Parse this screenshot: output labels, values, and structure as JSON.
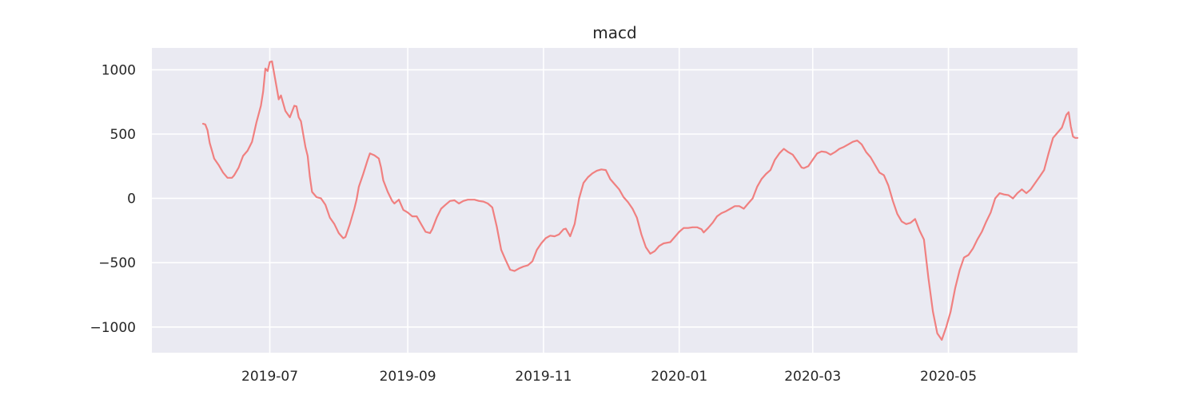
{
  "chart_data": {
    "type": "line",
    "title": "macd",
    "xlabel": "",
    "ylabel": "",
    "grid": true,
    "legend": "none",
    "x_axis": {
      "type": "date",
      "range": [
        "2019-05-09",
        "2020-06-28"
      ],
      "ticks": [
        "2019-07-01",
        "2019-09-01",
        "2019-11-01",
        "2020-01-01",
        "2020-03-01",
        "2020-05-01"
      ],
      "tick_labels": [
        "2019-07",
        "2019-09",
        "2019-11",
        "2020-01",
        "2020-03",
        "2020-05"
      ]
    },
    "y_axis": {
      "range": [
        -1200,
        1170
      ],
      "ticks": [
        -1000,
        -500,
        0,
        500,
        1000
      ],
      "tick_labels": [
        "−1000",
        "−500",
        "0",
        "500",
        "1000"
      ]
    },
    "colors": {
      "series": "#f08080",
      "plot_background": "#eaeaf2",
      "grid": "#ffffff",
      "text": "#262626"
    },
    "series": [
      {
        "points": [
          [
            "2019-06-01",
            580
          ],
          [
            "2019-06-02",
            575
          ],
          [
            "2019-06-03",
            530
          ],
          [
            "2019-06-04",
            430
          ],
          [
            "2019-06-05",
            370
          ],
          [
            "2019-06-06",
            310
          ],
          [
            "2019-06-08",
            260
          ],
          [
            "2019-06-10",
            200
          ],
          [
            "2019-06-12",
            160
          ],
          [
            "2019-06-14",
            160
          ],
          [
            "2019-06-15",
            180
          ],
          [
            "2019-06-17",
            240
          ],
          [
            "2019-06-19",
            330
          ],
          [
            "2019-06-21",
            370
          ],
          [
            "2019-06-23",
            440
          ],
          [
            "2019-06-25",
            590
          ],
          [
            "2019-06-27",
            720
          ],
          [
            "2019-06-28",
            830
          ],
          [
            "2019-06-29",
            1010
          ],
          [
            "2019-06-30",
            990
          ],
          [
            "2019-07-01",
            1060
          ],
          [
            "2019-07-02",
            1065
          ],
          [
            "2019-07-04",
            870
          ],
          [
            "2019-07-05",
            770
          ],
          [
            "2019-07-06",
            800
          ],
          [
            "2019-07-08",
            680
          ],
          [
            "2019-07-10",
            630
          ],
          [
            "2019-07-12",
            720
          ],
          [
            "2019-07-13",
            715
          ],
          [
            "2019-07-14",
            630
          ],
          [
            "2019-07-15",
            600
          ],
          [
            "2019-07-17",
            400
          ],
          [
            "2019-07-18",
            330
          ],
          [
            "2019-07-19",
            170
          ],
          [
            "2019-07-20",
            50
          ],
          [
            "2019-07-22",
            10
          ],
          [
            "2019-07-24",
            0
          ],
          [
            "2019-07-26",
            -50
          ],
          [
            "2019-07-28",
            -150
          ],
          [
            "2019-07-30",
            -200
          ],
          [
            "2019-08-01",
            -270
          ],
          [
            "2019-08-03",
            -310
          ],
          [
            "2019-08-04",
            -300
          ],
          [
            "2019-08-06",
            -200
          ],
          [
            "2019-08-08",
            -80
          ],
          [
            "2019-08-09",
            -10
          ],
          [
            "2019-08-10",
            90
          ],
          [
            "2019-08-12",
            190
          ],
          [
            "2019-08-14",
            300
          ],
          [
            "2019-08-15",
            350
          ],
          [
            "2019-08-17",
            335
          ],
          [
            "2019-08-19",
            310
          ],
          [
            "2019-08-20",
            240
          ],
          [
            "2019-08-21",
            140
          ],
          [
            "2019-08-23",
            50
          ],
          [
            "2019-08-25",
            -20
          ],
          [
            "2019-08-26",
            -40
          ],
          [
            "2019-08-28",
            -10
          ],
          [
            "2019-08-30",
            -90
          ],
          [
            "2019-09-01",
            -110
          ],
          [
            "2019-09-03",
            -140
          ],
          [
            "2019-09-05",
            -140
          ],
          [
            "2019-09-07",
            -200
          ],
          [
            "2019-09-09",
            -260
          ],
          [
            "2019-09-11",
            -270
          ],
          [
            "2019-09-12",
            -240
          ],
          [
            "2019-09-14",
            -150
          ],
          [
            "2019-09-16",
            -80
          ],
          [
            "2019-09-18",
            -50
          ],
          [
            "2019-09-20",
            -20
          ],
          [
            "2019-09-22",
            -15
          ],
          [
            "2019-09-24",
            -40
          ],
          [
            "2019-09-26",
            -20
          ],
          [
            "2019-09-28",
            -10
          ],
          [
            "2019-10-01",
            -10
          ],
          [
            "2019-10-03",
            -20
          ],
          [
            "2019-10-05",
            -25
          ],
          [
            "2019-10-07",
            -40
          ],
          [
            "2019-10-09",
            -70
          ],
          [
            "2019-10-11",
            -220
          ],
          [
            "2019-10-13",
            -400
          ],
          [
            "2019-10-15",
            -480
          ],
          [
            "2019-10-17",
            -555
          ],
          [
            "2019-10-19",
            -565
          ],
          [
            "2019-10-21",
            -545
          ],
          [
            "2019-10-23",
            -530
          ],
          [
            "2019-10-25",
            -520
          ],
          [
            "2019-10-27",
            -490
          ],
          [
            "2019-10-29",
            -400
          ],
          [
            "2019-10-31",
            -350
          ],
          [
            "2019-11-02",
            -310
          ],
          [
            "2019-11-04",
            -290
          ],
          [
            "2019-11-06",
            -295
          ],
          [
            "2019-11-08",
            -280
          ],
          [
            "2019-11-10",
            -240
          ],
          [
            "2019-11-11",
            -235
          ],
          [
            "2019-11-13",
            -295
          ],
          [
            "2019-11-15",
            -200
          ],
          [
            "2019-11-17",
            0
          ],
          [
            "2019-11-19",
            120
          ],
          [
            "2019-11-21",
            165
          ],
          [
            "2019-11-23",
            195
          ],
          [
            "2019-11-25",
            215
          ],
          [
            "2019-11-27",
            225
          ],
          [
            "2019-11-29",
            220
          ],
          [
            "2019-12-01",
            150
          ],
          [
            "2019-12-03",
            110
          ],
          [
            "2019-12-05",
            70
          ],
          [
            "2019-12-07",
            10
          ],
          [
            "2019-12-09",
            -30
          ],
          [
            "2019-12-11",
            -80
          ],
          [
            "2019-12-13",
            -150
          ],
          [
            "2019-12-15",
            -280
          ],
          [
            "2019-12-17",
            -380
          ],
          [
            "2019-12-19",
            -430
          ],
          [
            "2019-12-21",
            -410
          ],
          [
            "2019-12-23",
            -370
          ],
          [
            "2019-12-25",
            -350
          ],
          [
            "2019-12-28",
            -340
          ],
          [
            "2019-12-30",
            -300
          ],
          [
            "2020-01-01",
            -260
          ],
          [
            "2020-01-03",
            -230
          ],
          [
            "2020-01-05",
            -230
          ],
          [
            "2020-01-07",
            -225
          ],
          [
            "2020-01-09",
            -225
          ],
          [
            "2020-01-11",
            -240
          ],
          [
            "2020-01-12",
            -265
          ],
          [
            "2020-01-14",
            -230
          ],
          [
            "2020-01-16",
            -190
          ],
          [
            "2020-01-18",
            -140
          ],
          [
            "2020-01-20",
            -115
          ],
          [
            "2020-01-22",
            -100
          ],
          [
            "2020-01-24",
            -80
          ],
          [
            "2020-01-26",
            -60
          ],
          [
            "2020-01-28",
            -60
          ],
          [
            "2020-01-30",
            -80
          ],
          [
            "2020-02-01",
            -40
          ],
          [
            "2020-02-03",
            0
          ],
          [
            "2020-02-05",
            90
          ],
          [
            "2020-02-07",
            150
          ],
          [
            "2020-02-09",
            190
          ],
          [
            "2020-02-11",
            220
          ],
          [
            "2020-02-13",
            300
          ],
          [
            "2020-02-15",
            350
          ],
          [
            "2020-02-17",
            385
          ],
          [
            "2020-02-19",
            360
          ],
          [
            "2020-02-21",
            340
          ],
          [
            "2020-02-23",
            290
          ],
          [
            "2020-02-25",
            240
          ],
          [
            "2020-02-26",
            235
          ],
          [
            "2020-02-28",
            250
          ],
          [
            "2020-03-01",
            300
          ],
          [
            "2020-03-03",
            350
          ],
          [
            "2020-03-05",
            365
          ],
          [
            "2020-03-07",
            360
          ],
          [
            "2020-03-09",
            340
          ],
          [
            "2020-03-11",
            360
          ],
          [
            "2020-03-13",
            385
          ],
          [
            "2020-03-15",
            400
          ],
          [
            "2020-03-17",
            420
          ],
          [
            "2020-03-19",
            440
          ],
          [
            "2020-03-21",
            450
          ],
          [
            "2020-03-23",
            420
          ],
          [
            "2020-03-25",
            360
          ],
          [
            "2020-03-27",
            320
          ],
          [
            "2020-03-29",
            260
          ],
          [
            "2020-03-31",
            200
          ],
          [
            "2020-04-02",
            180
          ],
          [
            "2020-04-04",
            100
          ],
          [
            "2020-04-06",
            -20
          ],
          [
            "2020-04-08",
            -120
          ],
          [
            "2020-04-10",
            -180
          ],
          [
            "2020-04-12",
            -200
          ],
          [
            "2020-04-14",
            -190
          ],
          [
            "2020-04-16",
            -160
          ],
          [
            "2020-04-18",
            -250
          ],
          [
            "2020-04-20",
            -320
          ],
          [
            "2020-04-22",
            -620
          ],
          [
            "2020-04-24",
            -880
          ],
          [
            "2020-04-26",
            -1050
          ],
          [
            "2020-04-28",
            -1100
          ],
          [
            "2020-04-30",
            -1000
          ],
          [
            "2020-05-02",
            -880
          ],
          [
            "2020-05-04",
            -700
          ],
          [
            "2020-05-06",
            -560
          ],
          [
            "2020-05-08",
            -460
          ],
          [
            "2020-05-10",
            -440
          ],
          [
            "2020-05-12",
            -390
          ],
          [
            "2020-05-14",
            -320
          ],
          [
            "2020-05-16",
            -260
          ],
          [
            "2020-05-18",
            -180
          ],
          [
            "2020-05-20",
            -110
          ],
          [
            "2020-05-22",
            0
          ],
          [
            "2020-05-24",
            40
          ],
          [
            "2020-05-26",
            30
          ],
          [
            "2020-05-28",
            25
          ],
          [
            "2020-05-30",
            0
          ],
          [
            "2020-06-01",
            40
          ],
          [
            "2020-06-03",
            70
          ],
          [
            "2020-06-05",
            40
          ],
          [
            "2020-06-07",
            70
          ],
          [
            "2020-06-09",
            120
          ],
          [
            "2020-06-11",
            170
          ],
          [
            "2020-06-13",
            220
          ],
          [
            "2020-06-15",
            350
          ],
          [
            "2020-06-17",
            470
          ],
          [
            "2020-06-19",
            510
          ],
          [
            "2020-06-21",
            550
          ],
          [
            "2020-06-23",
            650
          ],
          [
            "2020-06-24",
            670
          ],
          [
            "2020-06-25",
            560
          ],
          [
            "2020-06-26",
            480
          ],
          [
            "2020-06-27",
            470
          ],
          [
            "2020-06-28",
            470
          ]
        ]
      }
    ]
  }
}
